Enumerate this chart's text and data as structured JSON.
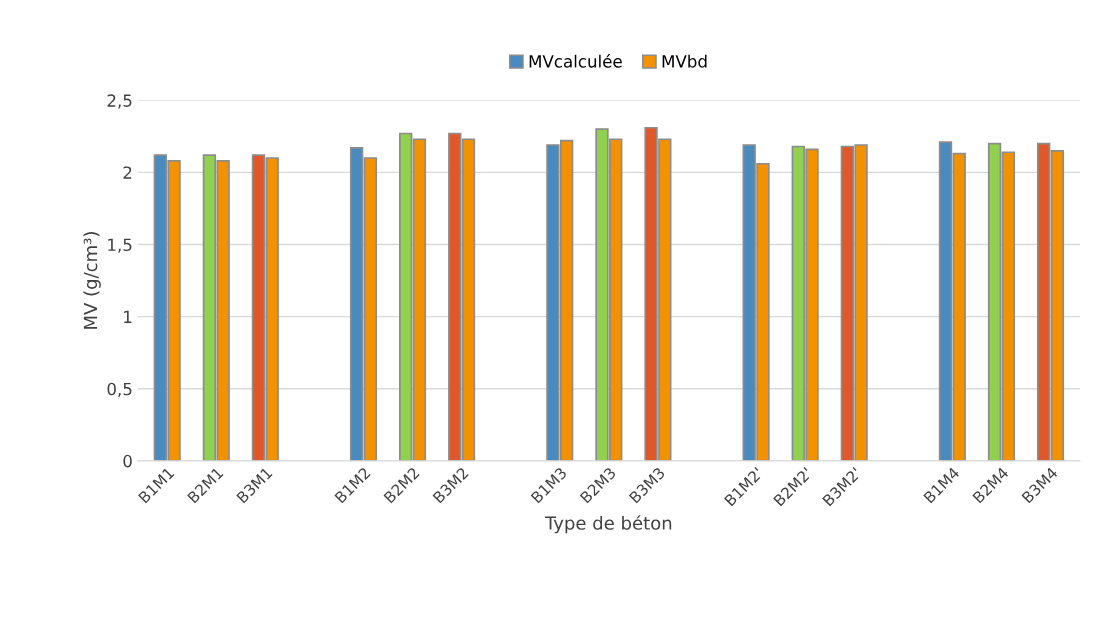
{
  "chart_data": {
    "type": "bar",
    "xlabel": "Type de béton",
    "ylabel": "MV (g/cm³)",
    "categories": [
      "B1M1",
      "B2M1",
      "B3M1",
      null,
      "B1M2",
      "B2M2",
      "B3M2",
      null,
      "B1M3",
      "B2M3",
      "B3M3",
      null,
      "B1M2'",
      "B2M2'",
      "B3M2'",
      null,
      "B1M4",
      "B2M4",
      "B3M4"
    ],
    "series": [
      {
        "name": "MVcalculée",
        "color": "#4a8bbf",
        "colors": [
          "#4a8bbf",
          "#92d050",
          "#e0582a",
          null,
          "#4a8bbf",
          "#92d050",
          "#e0582a",
          null,
          "#4a8bbf",
          "#92d050",
          "#e0582a",
          null,
          "#4a8bbf",
          "#92d050",
          "#e0582a",
          null,
          "#4a8bbf",
          "#92d050",
          "#e0582a"
        ],
        "values": [
          2.12,
          2.12,
          2.12,
          null,
          2.17,
          2.27,
          2.27,
          null,
          2.19,
          2.3,
          2.31,
          null,
          2.19,
          2.18,
          2.18,
          null,
          2.21,
          2.2,
          2.2
        ]
      },
      {
        "name": "MVbd",
        "color": "#f39200",
        "values": [
          2.08,
          2.08,
          2.1,
          null,
          2.1,
          2.23,
          2.23,
          null,
          2.22,
          2.23,
          2.23,
          null,
          2.06,
          2.16,
          2.19,
          null,
          2.13,
          2.14,
          2.15
        ]
      }
    ],
    "ylim": [
      0,
      2.5
    ],
    "yticks": [
      0,
      {
        "value": 0.5,
        "label": "0,5"
      },
      1,
      {
        "value": 1.5,
        "label": "1,5"
      },
      2,
      {
        "value": 2.5,
        "label": "2,5"
      }
    ],
    "grid": "y",
    "legend": "top"
  }
}
